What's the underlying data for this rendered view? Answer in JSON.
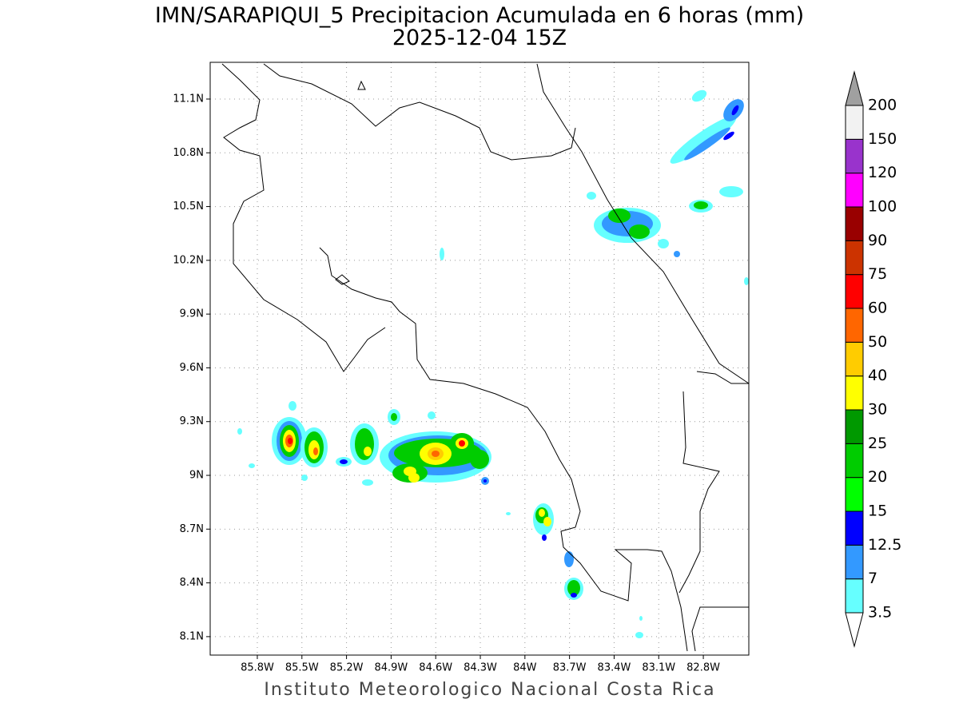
{
  "map": {
    "title": "IMN/SARAPIQUI_5 Precipitacion Acumulada en 6 horas (mm)",
    "subtitle": "2025-12-04 15Z",
    "footer": "Instituto Meteorologico Nacional Costa Rica",
    "xlim": [
      -86.117,
      -82.494
    ],
    "ylim": [
      7.997,
      11.305
    ],
    "xticks": [
      {
        "value": -85.8,
        "label": "85.8W"
      },
      {
        "value": -85.5,
        "label": "85.5W"
      },
      {
        "value": -85.2,
        "label": "85.2W"
      },
      {
        "value": -84.9,
        "label": "84.9W"
      },
      {
        "value": -84.6,
        "label": "84.6W"
      },
      {
        "value": -84.3,
        "label": "84.3W"
      },
      {
        "value": -84.0,
        "label": "84W"
      },
      {
        "value": -83.7,
        "label": "83.7W"
      },
      {
        "value": -83.4,
        "label": "83.4W"
      },
      {
        "value": -83.1,
        "label": "83.1W"
      },
      {
        "value": -82.8,
        "label": "82.8W"
      }
    ],
    "yticks": [
      {
        "value": 8.1,
        "label": "8.1N"
      },
      {
        "value": 8.4,
        "label": "8.4N"
      },
      {
        "value": 8.7,
        "label": "8.7N"
      },
      {
        "value": 9.0,
        "label": "9N"
      },
      {
        "value": 9.3,
        "label": "9.3N"
      },
      {
        "value": 9.6,
        "label": "9.6N"
      },
      {
        "value": 9.9,
        "label": "9.9N"
      },
      {
        "value": 10.2,
        "label": "10.2N"
      },
      {
        "value": 10.5,
        "label": "10.5N"
      },
      {
        "value": 10.8,
        "label": "10.8N"
      },
      {
        "value": 11.1,
        "label": "11.1N"
      }
    ],
    "grid": true,
    "colorbar": {
      "levels": [
        3.5,
        7,
        12.5,
        15,
        20,
        25,
        30,
        40,
        50,
        60,
        75,
        90,
        100,
        120,
        150,
        200
      ],
      "colors": [
        "#66ffff",
        "#3399ff",
        "#0000ff",
        "#00ff00",
        "#00cc00",
        "#009900",
        "#ffff00",
        "#ffcc00",
        "#ff6600",
        "#ff0000",
        "#cc3300",
        "#990000",
        "#ff00ff",
        "#9933cc",
        "#f2f2f2"
      ],
      "under_color": "#ffffff",
      "over_color": "#a0a0a0"
    }
  }
}
